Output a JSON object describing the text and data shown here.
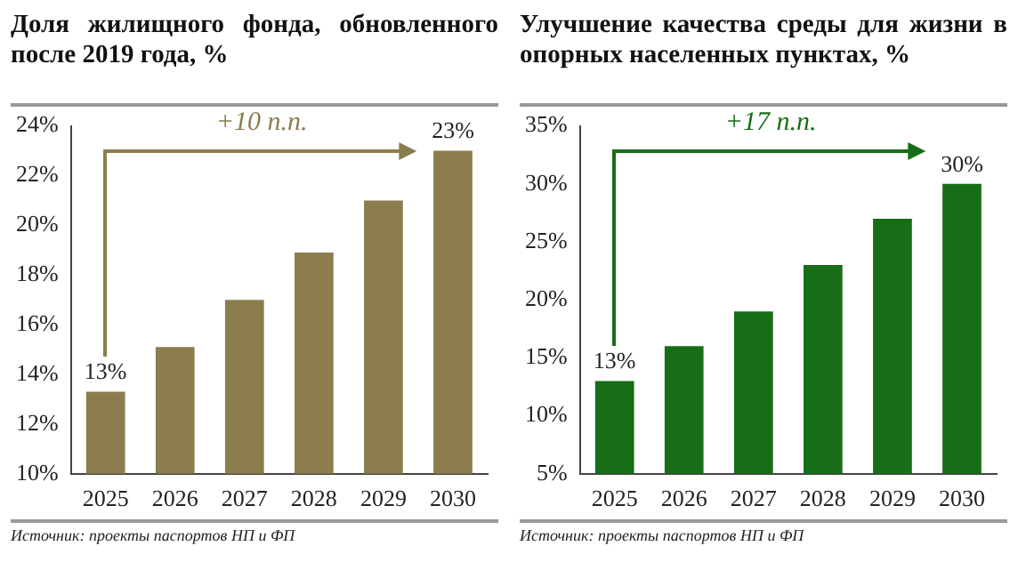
{
  "chart_data": [
    {
      "type": "bar",
      "title": "Доля жилищного фонда, обновленного после 2019 года, %",
      "categories": [
        "2025",
        "2026",
        "2027",
        "2028",
        "2029",
        "2030"
      ],
      "values": [
        13.3,
        15.1,
        17,
        18.9,
        21,
        23
      ],
      "value_labels": [
        "13%",
        null,
        null,
        null,
        null,
        "23%"
      ],
      "color": "#8c7d4e",
      "ylim": [
        10,
        24
      ],
      "yticks": [
        {
          "value": 10,
          "label": "10%"
        },
        {
          "value": 12,
          "label": "12%"
        },
        {
          "value": 14,
          "label": "14%"
        },
        {
          "value": 16,
          "label": "16%"
        },
        {
          "value": 18,
          "label": "18%"
        },
        {
          "value": 20,
          "label": "20%"
        },
        {
          "value": 22,
          "label": "22%"
        },
        {
          "value": 24,
          "label": "24%"
        }
      ],
      "grid": false,
      "legend": false,
      "annotations": [
        "+10 п.п.",
        "Источник: проекты паспортов НП и ФП"
      ]
    },
    {
      "type": "bar",
      "title": "Улучшение качества среды для жизни в опорных населенных пунктах, %",
      "categories": [
        "2025",
        "2026",
        "2027",
        "2028",
        "2029",
        "2030"
      ],
      "values": [
        13,
        16,
        19,
        23,
        27,
        30
      ],
      "value_labels": [
        "13%",
        null,
        null,
        null,
        null,
        "30%"
      ],
      "color": "#176e17",
      "ylim": [
        5,
        35
      ],
      "yticks": [
        {
          "value": 5,
          "label": "5%"
        },
        {
          "value": 10,
          "label": "10%"
        },
        {
          "value": 15,
          "label": "15%"
        },
        {
          "value": 20,
          "label": "20%"
        },
        {
          "value": 25,
          "label": "25%"
        },
        {
          "value": 30,
          "label": "30%"
        },
        {
          "value": 35,
          "label": "35%"
        }
      ],
      "grid": false,
      "legend": false,
      "annotations": [
        "+17 п.п.",
        "Источник: проекты паспортов НП и ФП"
      ]
    }
  ]
}
